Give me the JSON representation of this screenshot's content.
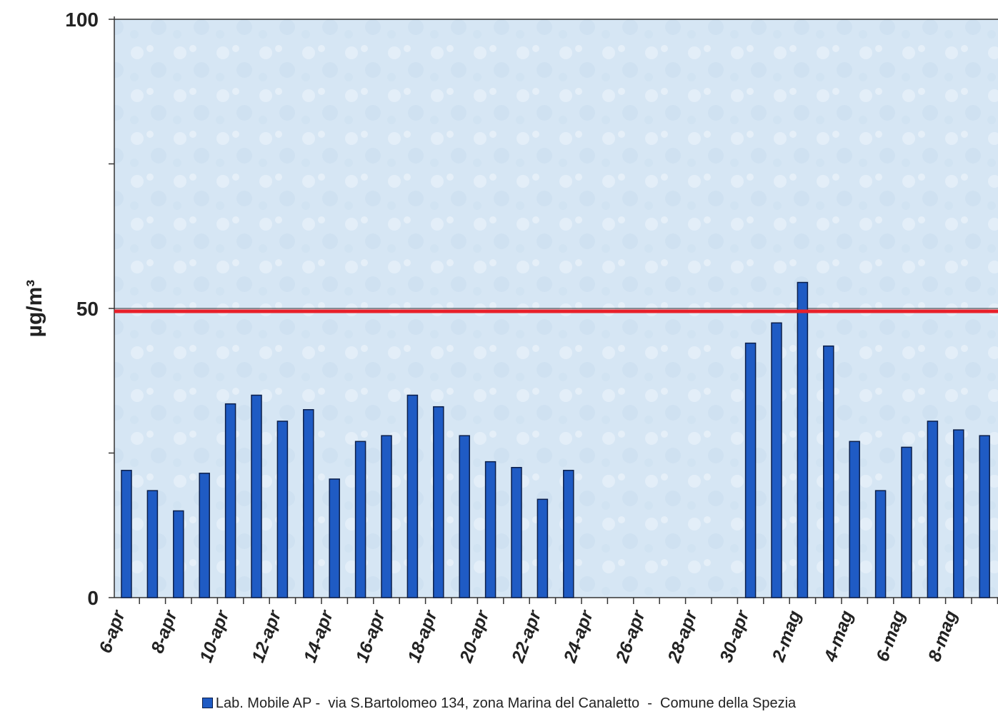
{
  "chart_data": {
    "type": "bar",
    "categories": [
      "6-apr",
      "7-apr",
      "8-apr",
      "9-apr",
      "10-apr",
      "11-apr",
      "12-apr",
      "13-apr",
      "14-apr",
      "15-apr",
      "16-apr",
      "17-apr",
      "18-apr",
      "19-apr",
      "20-apr",
      "21-apr",
      "22-apr",
      "23-apr",
      "24-apr",
      "25-apr",
      "26-apr",
      "27-apr",
      "28-apr",
      "29-apr",
      "30-apr",
      "1-mag",
      "2-mag",
      "3-mag",
      "4-mag",
      "5-mag",
      "6-mag",
      "7-mag",
      "8-mag",
      "9-mag"
    ],
    "tick_labels": [
      "6-apr",
      "8-apr",
      "10-apr",
      "12-apr",
      "14-apr",
      "16-apr",
      "18-apr",
      "20-apr",
      "22-apr",
      "24-apr",
      "26-apr",
      "28-apr",
      "30-apr",
      "2-mag",
      "4-mag",
      "6-mag",
      "8-mag"
    ],
    "series": [
      {
        "name": "Lab. Mobile AP -  via S.Bartolomeo 134, zona Marina del Canaletto  -  Comune della Spezia",
        "values": [
          22,
          18.5,
          15,
          21.5,
          33.5,
          35,
          30.5,
          32.5,
          20.5,
          27,
          28,
          35,
          33,
          28,
          23.5,
          22.5,
          17,
          22,
          null,
          null,
          null,
          null,
          null,
          null,
          44,
          47.5,
          54.5,
          43.5,
          27,
          18.5,
          26,
          30.5,
          29,
          28
        ],
        "color": "#1f5bc4"
      }
    ],
    "reference_line": {
      "value": 49.5,
      "color": "#e8202a"
    },
    "ylabel": "µg/m³",
    "ylim": [
      0,
      100
    ],
    "yticks": [
      0,
      50,
      100
    ],
    "grid": false,
    "legend_position": "bottom",
    "background": "#d9e8f5"
  }
}
